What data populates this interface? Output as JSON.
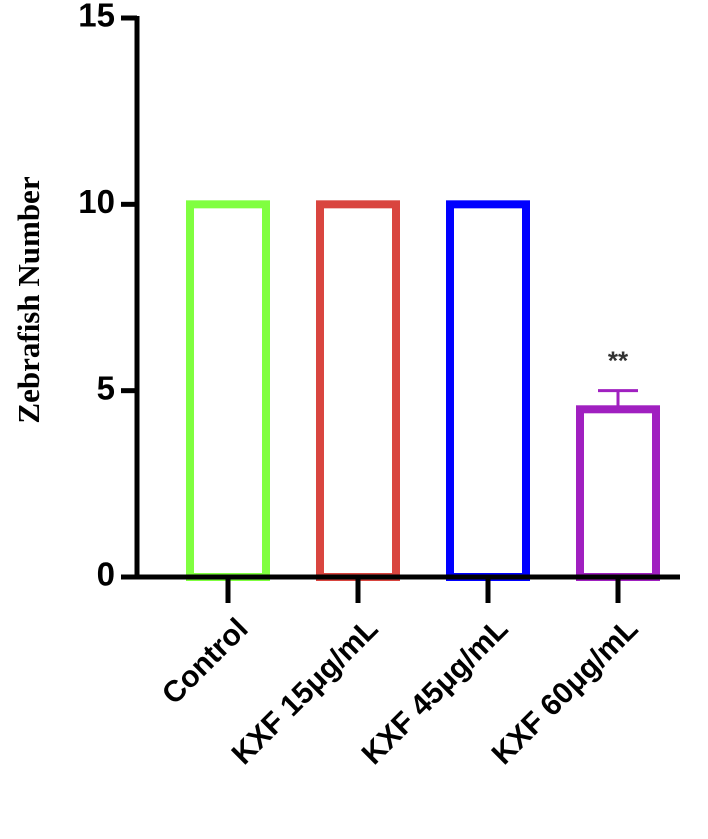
{
  "chart_data": {
    "type": "bar",
    "ylabel": "Zebrafish Number",
    "categories": [
      "Control",
      "KXF 15μg/mL",
      "KXF 45μg/mL",
      "KXF 60μg/mL"
    ],
    "values": [
      10,
      10,
      10,
      4.5
    ],
    "errors": [
      null,
      null,
      null,
      0.5
    ],
    "annotations": [
      null,
      null,
      null,
      "**"
    ],
    "colors": [
      "#80ff40",
      "#d9453f",
      "#0000ff",
      "#a020c0"
    ],
    "ylim": [
      0,
      15
    ],
    "yticks": [
      0,
      5,
      10,
      15
    ]
  }
}
